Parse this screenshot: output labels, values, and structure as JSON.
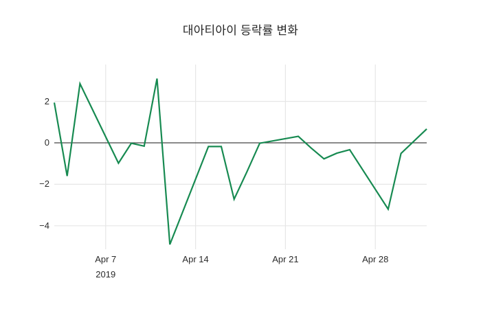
{
  "title": "대아티아이 등락률 변화",
  "colors": {
    "background": "#ffffff",
    "line": "#178a51",
    "grid": "#e6e6e6",
    "zeroline": "#444444",
    "text": "#2a2a2a"
  },
  "chart_data": {
    "type": "line",
    "title": "대아티아이 등락률 변화",
    "xlabel": "",
    "ylabel": "",
    "legend": false,
    "grid": true,
    "x": [
      "Apr 3",
      "Apr 4",
      "Apr 5",
      "Apr 8",
      "Apr 9",
      "Apr 10",
      "Apr 11",
      "Apr 12",
      "Apr 15",
      "Apr 16",
      "Apr 17",
      "Apr 18",
      "Apr 19",
      "Apr 22",
      "Apr 23",
      "Apr 24",
      "Apr 25",
      "Apr 26",
      "Apr 29",
      "Apr 30",
      "May 2"
    ],
    "day_offsets": [
      0,
      1,
      2,
      5,
      6,
      7,
      8,
      9,
      12,
      13,
      14,
      15,
      16,
      19,
      20,
      21,
      22,
      23,
      26,
      27,
      29
    ],
    "values": [
      1.94,
      -1.6,
      2.85,
      -0.98,
      -0.02,
      -0.16,
      3.1,
      -4.9,
      -0.18,
      -0.18,
      -2.72,
      -1.4,
      -0.02,
      0.31,
      -0.25,
      -0.77,
      -0.5,
      -0.33,
      -3.2,
      -0.51,
      0.67
    ],
    "series_name": "등락률",
    "yticks": [
      2,
      0,
      -2,
      -4
    ],
    "ytick_labels": [
      "2",
      "0",
      "−2",
      "−4"
    ],
    "xticks": [
      {
        "label": "Apr 7",
        "sublabel": "2019",
        "day_offset": 4
      },
      {
        "label": "Apr 14",
        "sublabel": "",
        "day_offset": 11
      },
      {
        "label": "Apr 21",
        "sublabel": "",
        "day_offset": 18
      },
      {
        "label": "Apr 28",
        "sublabel": "",
        "day_offset": 25
      }
    ],
    "ylim": [
      -5.15,
      3.77
    ],
    "xlim_days": [
      0,
      29
    ]
  }
}
